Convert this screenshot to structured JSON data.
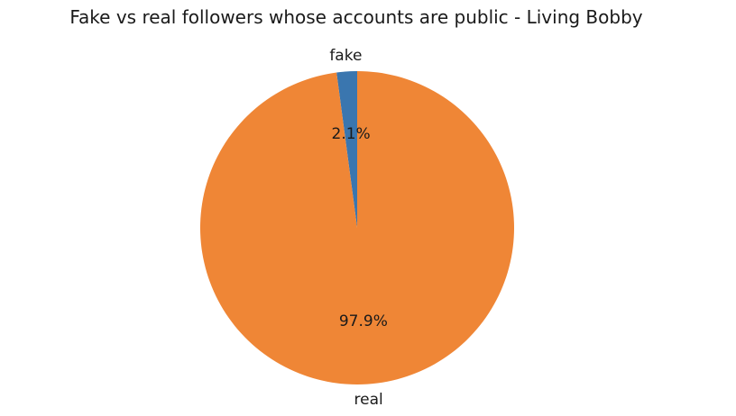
{
  "chart_data": {
    "type": "pie",
    "title": "Fake vs real followers whose accounts are public - Living Bobby",
    "categories": [
      "fake",
      "real"
    ],
    "values": [
      2.1,
      97.9
    ],
    "value_labels": [
      "2.1%",
      "97.9%"
    ],
    "colors": [
      "#3a76af",
      "#ef8636"
    ],
    "start_angle_deg": 90,
    "direction": "counterclockwise",
    "legend": "none"
  }
}
